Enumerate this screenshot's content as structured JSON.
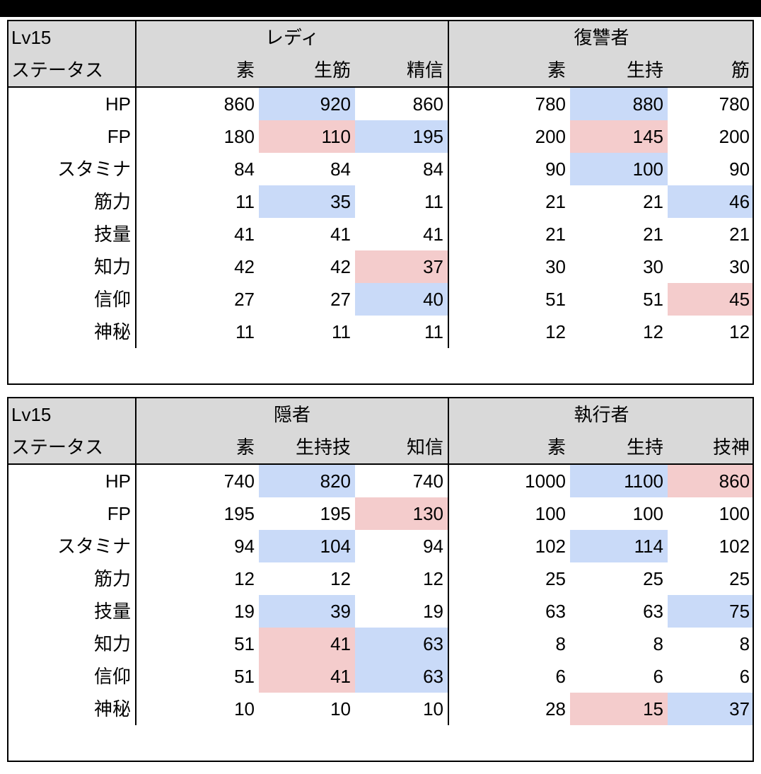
{
  "tables": [
    {
      "level": "Lv15",
      "status_label": "ステータス",
      "groups": [
        {
          "name": "レディ",
          "cols": [
            "素",
            "生筋",
            "精信"
          ]
        },
        {
          "name": "復讐者",
          "cols": [
            "素",
            "生持",
            "筋"
          ]
        }
      ],
      "rows": [
        {
          "label": "HP",
          "values": [
            "860",
            "920",
            "860",
            "780",
            "880",
            "780"
          ],
          "hl": [
            "",
            "blue",
            "",
            "",
            "blue",
            ""
          ]
        },
        {
          "label": "FP",
          "values": [
            "180",
            "110",
            "195",
            "200",
            "145",
            "200"
          ],
          "hl": [
            "",
            "red",
            "blue",
            "",
            "red",
            ""
          ]
        },
        {
          "label": "スタミナ",
          "values": [
            "84",
            "84",
            "84",
            "90",
            "100",
            "90"
          ],
          "hl": [
            "",
            "",
            "",
            "",
            "blue",
            ""
          ]
        },
        {
          "label": "筋力",
          "values": [
            "11",
            "35",
            "11",
            "21",
            "21",
            "46"
          ],
          "hl": [
            "",
            "blue",
            "",
            "",
            "",
            "blue"
          ]
        },
        {
          "label": "技量",
          "values": [
            "41",
            "41",
            "41",
            "21",
            "21",
            "21"
          ],
          "hl": [
            "",
            "",
            "",
            "",
            "",
            ""
          ]
        },
        {
          "label": "知力",
          "values": [
            "42",
            "42",
            "37",
            "30",
            "30",
            "30"
          ],
          "hl": [
            "",
            "",
            "red",
            "",
            "",
            ""
          ]
        },
        {
          "label": "信仰",
          "values": [
            "27",
            "27",
            "40",
            "51",
            "51",
            "45"
          ],
          "hl": [
            "",
            "",
            "blue",
            "",
            "",
            "red"
          ]
        },
        {
          "label": "神秘",
          "values": [
            "11",
            "11",
            "11",
            "12",
            "12",
            "12"
          ],
          "hl": [
            "",
            "",
            "",
            "",
            "",
            ""
          ]
        }
      ]
    },
    {
      "level": "Lv15",
      "status_label": "ステータス",
      "groups": [
        {
          "name": "隠者",
          "cols": [
            "素",
            "生持技",
            "知信"
          ]
        },
        {
          "name": "執行者",
          "cols": [
            "素",
            "生持",
            "技神"
          ]
        }
      ],
      "rows": [
        {
          "label": "HP",
          "values": [
            "740",
            "820",
            "740",
            "1000",
            "1100",
            "860"
          ],
          "hl": [
            "",
            "blue",
            "",
            "",
            "blue",
            "red"
          ]
        },
        {
          "label": "FP",
          "values": [
            "195",
            "195",
            "130",
            "100",
            "100",
            "100"
          ],
          "hl": [
            "",
            "",
            "red",
            "",
            "",
            ""
          ]
        },
        {
          "label": "スタミナ",
          "values": [
            "94",
            "104",
            "94",
            "102",
            "114",
            "102"
          ],
          "hl": [
            "",
            "blue",
            "",
            "",
            "blue",
            ""
          ]
        },
        {
          "label": "筋力",
          "values": [
            "12",
            "12",
            "12",
            "25",
            "25",
            "25"
          ],
          "hl": [
            "",
            "",
            "",
            "",
            "",
            ""
          ]
        },
        {
          "label": "技量",
          "values": [
            "19",
            "39",
            "19",
            "63",
            "63",
            "75"
          ],
          "hl": [
            "",
            "blue",
            "",
            "",
            "",
            "blue"
          ]
        },
        {
          "label": "知力",
          "values": [
            "51",
            "41",
            "63",
            "8",
            "8",
            "8"
          ],
          "hl": [
            "",
            "red",
            "blue",
            "",
            "",
            ""
          ]
        },
        {
          "label": "信仰",
          "values": [
            "51",
            "41",
            "63",
            "6",
            "6",
            "6"
          ],
          "hl": [
            "",
            "red",
            "blue",
            "",
            "",
            ""
          ]
        },
        {
          "label": "神秘",
          "values": [
            "10",
            "10",
            "10",
            "28",
            "15",
            "37"
          ],
          "hl": [
            "",
            "",
            "",
            "",
            "red",
            "blue"
          ]
        }
      ]
    }
  ],
  "colors": {
    "header_bg": "#d9d9d9",
    "highlight_blue": "#c9daf8",
    "highlight_red": "#f4cccc"
  }
}
